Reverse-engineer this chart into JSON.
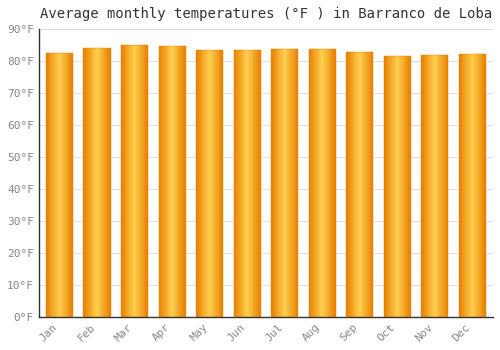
{
  "title": "Average monthly temperatures (°F ) in Barranco de Loba",
  "months": [
    "Jan",
    "Feb",
    "Mar",
    "Apr",
    "May",
    "Jun",
    "Jul",
    "Aug",
    "Sep",
    "Oct",
    "Nov",
    "Dec"
  ],
  "values": [
    82.5,
    84.0,
    85.0,
    84.8,
    83.5,
    83.3,
    83.8,
    83.7,
    82.7,
    81.7,
    82.0,
    82.3
  ],
  "ylim": [
    0,
    90
  ],
  "yticks": [
    0,
    10,
    20,
    30,
    40,
    50,
    60,
    70,
    80,
    90
  ],
  "ytick_labels": [
    "0°F",
    "10°F",
    "20°F",
    "30°F",
    "40°F",
    "50°F",
    "60°F",
    "70°F",
    "80°F",
    "90°F"
  ],
  "bar_color_center": "#FFD050",
  "bar_color_edge": "#E88000",
  "bar_gap_color": "#e8e8f0",
  "background_color": "#ffffff",
  "plot_bg_color": "#ffffff",
  "grid_color": "#ddddee",
  "title_fontsize": 10,
  "tick_fontsize": 8,
  "font_family": "monospace",
  "tick_color": "#888888",
  "title_color": "#333333",
  "spine_color": "#333333",
  "bar_width": 0.72,
  "n_gradient_steps": 30
}
